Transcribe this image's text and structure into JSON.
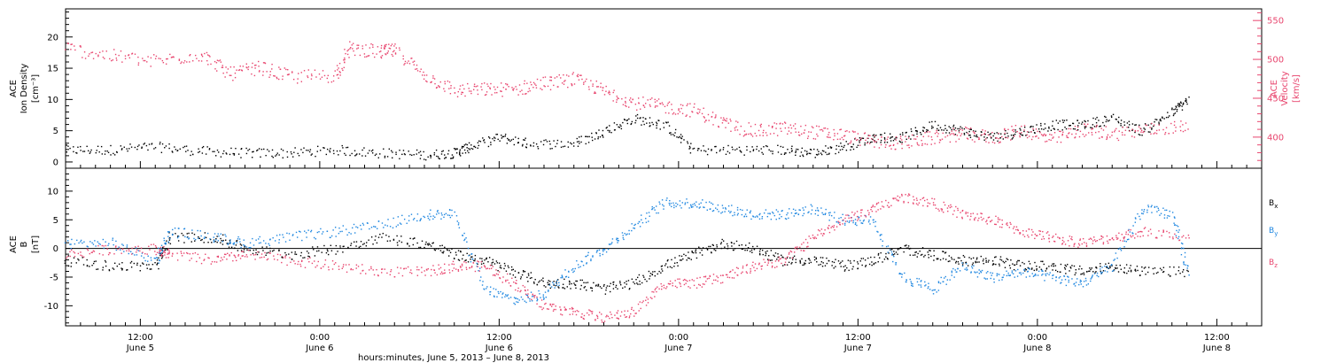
{
  "chart_data": [
    {
      "type": "scatter",
      "panel": "top",
      "ylabel_lines": [
        "ACE",
        "Ion Density",
        "[cm⁻³]"
      ],
      "ylabel_right_lines": [
        "ACE",
        "Velocity",
        "[km/s]"
      ],
      "ylim": [
        -1,
        24.5
      ],
      "ylim_right": [
        360,
        565
      ],
      "yticks": [
        0,
        5,
        10,
        15,
        20
      ],
      "yticks_right": [
        400,
        450,
        500,
        550
      ],
      "series": [
        {
          "color": "#000000",
          "axis": "left",
          "values": [
            [
              0,
              2
            ],
            [
              6,
              2
            ],
            [
              12,
              2.5
            ],
            [
              18,
              1.8
            ],
            [
              24,
              1.5
            ],
            [
              30,
              1.5
            ],
            [
              36,
              2
            ],
            [
              42,
              1.5
            ],
            [
              48,
              1.2
            ],
            [
              52,
              1.5
            ],
            [
              54,
              2.5
            ],
            [
              58,
              4
            ],
            [
              62,
              3
            ],
            [
              68,
              3
            ],
            [
              72,
              5
            ],
            [
              76,
              7
            ],
            [
              80,
              6
            ],
            [
              84,
              2
            ],
            [
              90,
              2
            ],
            [
              96,
              2
            ],
            [
              100,
              1.5
            ],
            [
              104,
              2.5
            ],
            [
              108,
              4
            ],
            [
              112,
              4
            ],
            [
              116,
              6
            ],
            [
              120,
              5
            ],
            [
              124,
              4
            ],
            [
              128,
              5
            ],
            [
              132,
              6
            ],
            [
              136,
              6
            ],
            [
              140,
              7
            ],
            [
              144,
              5
            ],
            [
              148,
              8
            ],
            [
              150,
              10
            ]
          ]
        },
        {
          "color": "#e8456e",
          "axis": "right",
          "values": [
            [
              0,
              515
            ],
            [
              6,
              505
            ],
            [
              12,
              498
            ],
            [
              18,
              507
            ],
            [
              22,
              482
            ],
            [
              26,
              490
            ],
            [
              30,
              478
            ],
            [
              36,
              480
            ],
            [
              38,
              515
            ],
            [
              42,
              510
            ],
            [
              44,
              512
            ],
            [
              48,
              480
            ],
            [
              52,
              460
            ],
            [
              56,
              462
            ],
            [
              60,
              462
            ],
            [
              64,
              470
            ],
            [
              68,
              475
            ],
            [
              72,
              460
            ],
            [
              76,
              445
            ],
            [
              80,
              440
            ],
            [
              84,
              435
            ],
            [
              88,
              418
            ],
            [
              92,
              408
            ],
            [
              96,
              412
            ],
            [
              100,
              407
            ],
            [
              104,
              403
            ],
            [
              108,
              395
            ],
            [
              112,
              393
            ],
            [
              116,
              400
            ],
            [
              120,
              405
            ],
            [
              124,
              400
            ],
            [
              128,
              410
            ],
            [
              132,
              397
            ],
            [
              136,
              410
            ],
            [
              140,
              405
            ],
            [
              145,
              410
            ],
            [
              150,
              415
            ]
          ]
        }
      ]
    },
    {
      "type": "scatter",
      "panel": "bottom",
      "ylabel_lines": [
        "ACE",
        "B",
        "[nT]"
      ],
      "ylim": [
        -13.5,
        14
      ],
      "yticks": [
        -10,
        -5,
        0,
        5,
        10
      ],
      "legend_placement": "right",
      "series": [
        {
          "name": "Bx",
          "color": "#000000",
          "values": [
            [
              0,
              -2
            ],
            [
              6,
              -3
            ],
            [
              12,
              -3
            ],
            [
              14,
              2
            ],
            [
              20,
              2
            ],
            [
              24,
              0
            ],
            [
              30,
              -1
            ],
            [
              36,
              0
            ],
            [
              42,
              2
            ],
            [
              48,
              1
            ],
            [
              52,
              -1
            ],
            [
              56,
              -2
            ],
            [
              60,
              -4
            ],
            [
              64,
              -6
            ],
            [
              68,
              -6
            ],
            [
              72,
              -7
            ],
            [
              76,
              -6
            ],
            [
              80,
              -3
            ],
            [
              84,
              -1
            ],
            [
              88,
              1
            ],
            [
              92,
              0
            ],
            [
              96,
              -2
            ],
            [
              100,
              -2
            ],
            [
              104,
              -3
            ],
            [
              108,
              -2
            ],
            [
              112,
              0
            ],
            [
              116,
              -1
            ],
            [
              120,
              -2
            ],
            [
              124,
              -2
            ],
            [
              128,
              -3
            ],
            [
              132,
              -3
            ],
            [
              136,
              -4
            ],
            [
              140,
              -3
            ],
            [
              144,
              -4
            ],
            [
              150,
              -4
            ]
          ]
        },
        {
          "name": "By",
          "color": "#1f87e0",
          "values": [
            [
              0,
              1
            ],
            [
              6,
              1
            ],
            [
              12,
              -2
            ],
            [
              14,
              3
            ],
            [
              20,
              2
            ],
            [
              24,
              1
            ],
            [
              30,
              2
            ],
            [
              36,
              3
            ],
            [
              42,
              4
            ],
            [
              48,
              6
            ],
            [
              52,
              6
            ],
            [
              56,
              -7
            ],
            [
              60,
              -9
            ],
            [
              64,
              -8
            ],
            [
              68,
              -3
            ],
            [
              72,
              0
            ],
            [
              76,
              4
            ],
            [
              80,
              8
            ],
            [
              84,
              8
            ],
            [
              88,
              7
            ],
            [
              92,
              6
            ],
            [
              96,
              6
            ],
            [
              100,
              7
            ],
            [
              104,
              5
            ],
            [
              108,
              5
            ],
            [
              112,
              -5
            ],
            [
              116,
              -7
            ],
            [
              120,
              -3
            ],
            [
              124,
              -5
            ],
            [
              128,
              -4
            ],
            [
              132,
              -5
            ],
            [
              136,
              -6
            ],
            [
              140,
              -3
            ],
            [
              144,
              7
            ],
            [
              148,
              6
            ],
            [
              150,
              -4
            ]
          ]
        },
        {
          "name": "Bz",
          "color": "#e8456e",
          "values": [
            [
              0,
              -1
            ],
            [
              6,
              0
            ],
            [
              12,
              0
            ],
            [
              14,
              -1
            ],
            [
              20,
              -2
            ],
            [
              24,
              -1
            ],
            [
              30,
              -2
            ],
            [
              36,
              -3
            ],
            [
              42,
              -4
            ],
            [
              48,
              -4
            ],
            [
              52,
              -3
            ],
            [
              56,
              -3
            ],
            [
              60,
              -6
            ],
            [
              64,
              -10
            ],
            [
              68,
              -11
            ],
            [
              72,
              -12
            ],
            [
              76,
              -11
            ],
            [
              80,
              -6
            ],
            [
              84,
              -6
            ],
            [
              88,
              -5
            ],
            [
              92,
              -3
            ],
            [
              96,
              -2
            ],
            [
              100,
              2
            ],
            [
              104,
              5
            ],
            [
              108,
              7
            ],
            [
              112,
              9
            ],
            [
              116,
              8
            ],
            [
              120,
              6
            ],
            [
              124,
              5
            ],
            [
              128,
              3
            ],
            [
              132,
              2
            ],
            [
              136,
              1
            ],
            [
              140,
              2
            ],
            [
              144,
              3
            ],
            [
              150,
              2
            ]
          ]
        }
      ]
    }
  ],
  "x_axis": {
    "xlim": [
      0,
      160
    ],
    "ticks": [
      {
        "x": 10,
        "time": "12:00",
        "date": "June 5"
      },
      {
        "x": 34,
        "time": "0:00",
        "date": "June 6"
      },
      {
        "x": 58,
        "time": "12:00",
        "date": "June 6"
      },
      {
        "x": 82,
        "time": "0:00",
        "date": "June 7"
      },
      {
        "x": 106,
        "time": "12:00",
        "date": "June 7"
      },
      {
        "x": 130,
        "time": "0:00",
        "date": "June 8"
      },
      {
        "x": 154,
        "time": "12:00",
        "date": "June 8"
      }
    ],
    "xlabel": "hours:minutes, June  5, 2013 – June  8, 2013"
  },
  "legend": {
    "bx_main": "B",
    "bx_sub": "x",
    "by_main": "B",
    "by_sub": "y",
    "bz_main": "B",
    "bz_sub": "z"
  },
  "colors": {
    "black": "#000000",
    "pink": "#e8456e",
    "blue": "#1f87e0"
  }
}
